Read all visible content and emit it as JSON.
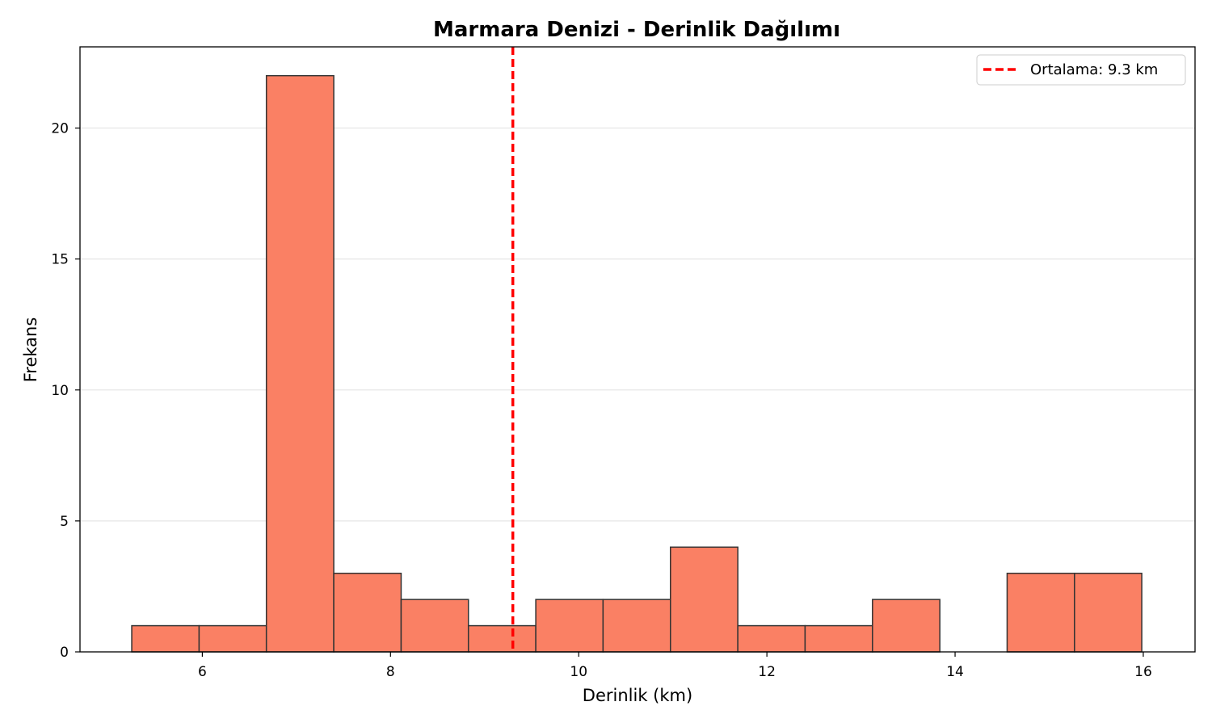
{
  "chart_data": {
    "type": "histogram",
    "title": "Marmara Denizi - Derinlik Dağılımı",
    "xlabel": "Derinlik (km)",
    "ylabel": "Frekans",
    "xlim": [
      4.7,
      16.55
    ],
    "ylim": [
      0,
      23.1
    ],
    "xticks": [
      6,
      8,
      10,
      12,
      14,
      16
    ],
    "yticks": [
      0,
      5,
      10,
      15,
      20
    ],
    "grid": "y",
    "bin_edges": [
      5.25,
      5.966,
      6.681,
      7.397,
      8.113,
      8.828,
      9.544,
      10.259,
      10.975,
      11.691,
      12.406,
      13.122,
      13.838,
      14.553,
      15.269,
      15.984
    ],
    "counts": [
      1,
      1,
      22,
      3,
      2,
      1,
      2,
      2,
      4,
      1,
      1,
      2,
      0,
      3,
      3
    ],
    "bar_color": "#FA8064",
    "bar_edge_color": "#333333",
    "mean_line": {
      "x": 9.3,
      "color": "#FF0000",
      "style": "dashed"
    },
    "legend": {
      "position": "top-right",
      "entries": [
        "Ortalama: 9.3 km"
      ]
    }
  }
}
